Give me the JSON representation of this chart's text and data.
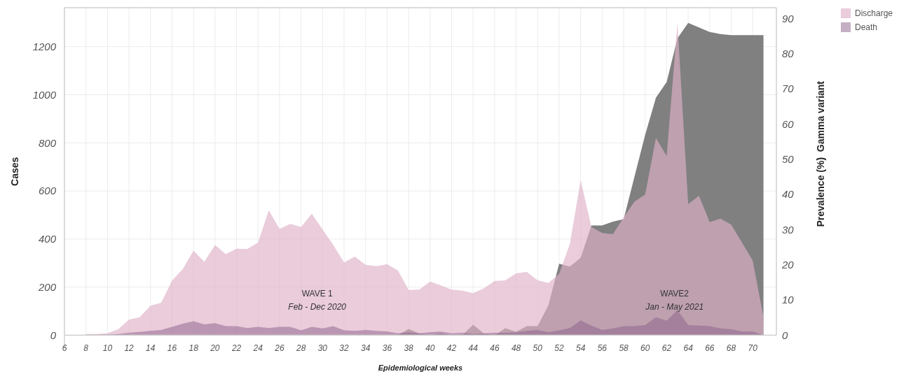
{
  "chart_data": {
    "type": "area",
    "xlabel": "Epidemiological weeks",
    "ylabel": "Cases",
    "y2label": "Prevalence (%)  Gamma variant",
    "xlim": [
      6,
      72.2
    ],
    "xticks": [
      6,
      8,
      10,
      12,
      14,
      16,
      18,
      20,
      22,
      24,
      26,
      28,
      30,
      32,
      34,
      36,
      38,
      40,
      42,
      44,
      46,
      48,
      50,
      52,
      54,
      56,
      58,
      60,
      62,
      64,
      66,
      68,
      70
    ],
    "ylim": [
      0,
      1362
    ],
    "yticks": [
      0,
      200,
      400,
      600,
      800,
      1000,
      1200
    ],
    "y2lim": [
      0,
      93.1
    ],
    "y2ticks": [
      0,
      10,
      20,
      30,
      40,
      50,
      60,
      70,
      80,
      90
    ],
    "grid": true,
    "legend": "top right",
    "series": [
      {
        "color": "#808080",
        "axis": "y2",
        "x": [
          36,
          37,
          38,
          39,
          40,
          41,
          42,
          43,
          44,
          45,
          46,
          47,
          48,
          49,
          50,
          51,
          52,
          53,
          54,
          55,
          56,
          57,
          58,
          59,
          60,
          61,
          62,
          63,
          64,
          65,
          66,
          67,
          68,
          69,
          70,
          71
        ],
        "values": [
          0,
          0,
          1.8,
          0.5,
          0,
          0.5,
          0,
          0,
          3,
          0.5,
          0,
          2,
          1,
          2.6,
          2.6,
          8.5,
          20.3,
          19.5,
          22,
          31.2,
          31.2,
          32.3,
          33,
          45,
          57,
          67.5,
          72,
          84.4,
          88.8,
          87.5,
          86.2,
          85.6,
          85.3,
          85.3,
          85.3,
          85.3
        ]
      },
      {
        "name": "Discharge",
        "color": "#dfb0c8",
        "x": [
          8,
          9,
          10,
          11,
          12,
          13,
          14,
          15,
          16,
          17,
          18,
          19,
          20,
          21,
          22,
          23,
          24,
          25,
          26,
          27,
          28,
          29,
          30,
          31,
          32,
          33,
          34,
          35,
          36,
          37,
          38,
          39,
          40,
          41,
          42,
          43,
          44,
          45,
          46,
          47,
          48,
          49,
          50,
          51,
          52,
          53,
          54,
          55,
          56,
          57,
          58,
          59,
          60,
          61,
          62,
          63,
          64,
          65,
          66,
          67,
          68,
          69,
          70,
          71
        ],
        "values": [
          5,
          5,
          8,
          25,
          65,
          75,
          123,
          135,
          227,
          275,
          352,
          305,
          375,
          337,
          360,
          358,
          385,
          520,
          442,
          463,
          450,
          505,
          440,
          375,
          302,
          327,
          293,
          287,
          295,
          270,
          188,
          190,
          223,
          207,
          190,
          185,
          175,
          195,
          225,
          228,
          257,
          263,
          228,
          217,
          255,
          380,
          645,
          450,
          425,
          420,
          490,
          555,
          585,
          820,
          745,
          1300,
          545,
          580,
          470,
          485,
          460,
          385,
          310,
          75
        ]
      },
      {
        "name": "Death",
        "color": "#8c5f8c",
        "x": [
          8,
          9,
          10,
          11,
          12,
          13,
          14,
          15,
          16,
          17,
          18,
          19,
          20,
          21,
          22,
          23,
          24,
          25,
          26,
          27,
          28,
          29,
          30,
          31,
          32,
          33,
          34,
          35,
          36,
          37,
          38,
          39,
          40,
          41,
          42,
          43,
          44,
          45,
          46,
          47,
          48,
          49,
          50,
          51,
          52,
          53,
          54,
          55,
          56,
          57,
          58,
          59,
          60,
          61,
          62,
          63,
          64,
          65,
          66,
          67,
          68,
          69,
          70,
          71
        ],
        "values": [
          2,
          2,
          3,
          5,
          10,
          14,
          18,
          22,
          35,
          48,
          58,
          45,
          50,
          38,
          38,
          30,
          35,
          30,
          35,
          35,
          20,
          35,
          28,
          38,
          20,
          18,
          22,
          18,
          15,
          8,
          12,
          8,
          12,
          15,
          8,
          10,
          5,
          8,
          10,
          10,
          12,
          18,
          22,
          12,
          20,
          30,
          62,
          40,
          22,
          28,
          38,
          38,
          42,
          75,
          60,
          105,
          42,
          40,
          38,
          28,
          25,
          15,
          15,
          0
        ]
      }
    ],
    "annotations": [
      "WAVE 1\nFeb - Dec 2020",
      "WAVE2\nJan - May 2021"
    ]
  }
}
